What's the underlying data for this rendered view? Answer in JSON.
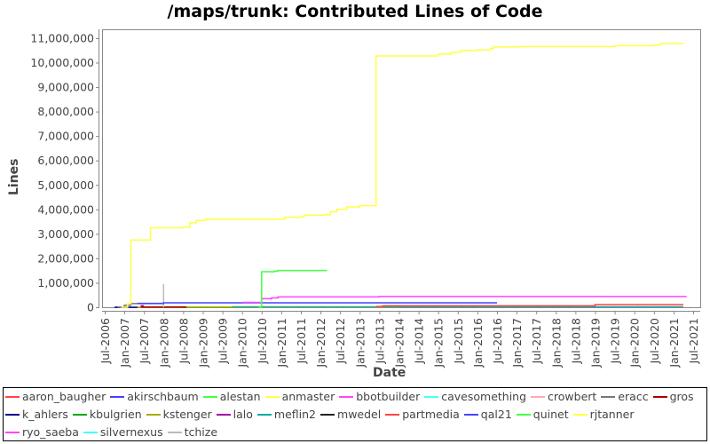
{
  "chart_data": {
    "type": "line",
    "title": "/maps/trunk: Contributed Lines of Code",
    "xlabel": "Date",
    "ylabel": "Lines",
    "ylim": [
      0,
      11500000
    ],
    "y_ticks": [
      "0",
      "1,000,000",
      "2,000,000",
      "3,000,000",
      "4,000,000",
      "5,000,000",
      "6,000,000",
      "7,000,000",
      "8,000,000",
      "9,000,000",
      "10,000,000",
      "11,000,000"
    ],
    "x_ticks": [
      "Jul-2006",
      "Jan-2007",
      "Jul-2007",
      "Jan-2008",
      "Jul-2008",
      "Jan-2009",
      "Jul-2009",
      "Jan-2010",
      "Jul-2010",
      "Jan-2011",
      "Jul-2011",
      "Jan-2012",
      "Jul-2012",
      "Jan-2013",
      "Jul-2013",
      "Jan-2014",
      "Jul-2014",
      "Jan-2015",
      "Jul-2015",
      "Jan-2016",
      "Jul-2016",
      "Jan-2017",
      "Jul-2017",
      "Jan-2018",
      "Jul-2018",
      "Jan-2019",
      "Jul-2019",
      "Jan-2020",
      "Jul-2020",
      "Jan-2021",
      "Jul-2021"
    ],
    "grid": false,
    "legend_position": "bottom",
    "series": [
      {
        "name": "rjtanner",
        "color": "#ffff44",
        "points": [
          [
            "2006-12",
            0
          ],
          [
            "2007-02",
            150000
          ],
          [
            "2007-03",
            900000
          ],
          [
            "2007-03",
            2750000
          ],
          [
            "2007-09",
            2750000
          ],
          [
            "2007-09",
            3250000
          ],
          [
            "2008-07",
            3270000
          ],
          [
            "2008-09",
            3450000
          ],
          [
            "2008-11",
            3550000
          ],
          [
            "2009-02",
            3600000
          ],
          [
            "2011-01",
            3600000
          ],
          [
            "2011-02",
            3680000
          ],
          [
            "2011-07",
            3700000
          ],
          [
            "2011-08",
            3760000
          ],
          [
            "2012-02",
            3780000
          ],
          [
            "2012-04",
            3900000
          ],
          [
            "2012-06",
            4000000
          ],
          [
            "2012-09",
            4100000
          ],
          [
            "2013-01",
            4150000
          ],
          [
            "2013-06",
            4200000
          ],
          [
            "2013-06",
            10270000
          ],
          [
            "2014-11",
            10270000
          ],
          [
            "2015-01",
            10350000
          ],
          [
            "2015-05",
            10420000
          ],
          [
            "2015-08",
            10500000
          ],
          [
            "2016-01",
            10520000
          ],
          [
            "2016-05",
            10580000
          ],
          [
            "2016-06",
            10640000
          ],
          [
            "2017-02",
            10660000
          ],
          [
            "2019-07",
            10690000
          ],
          [
            "2020-07",
            10720000
          ],
          [
            "2020-09",
            10780000
          ],
          [
            "2021-04",
            10790000
          ]
        ]
      },
      {
        "name": "quinet",
        "color": "#44ff44",
        "points": [
          [
            "2010-06",
            0
          ],
          [
            "2010-07",
            1450000
          ],
          [
            "2010-11",
            1480000
          ],
          [
            "2010-12",
            1500000
          ],
          [
            "2012-03",
            1500000
          ]
        ]
      },
      {
        "name": "bbotbuilder",
        "color": "#ff44ff",
        "points": [
          [
            "2010-01",
            200000
          ],
          [
            "2010-06",
            200000
          ],
          [
            "2010-07",
            350000
          ],
          [
            "2010-10",
            380000
          ],
          [
            "2010-12",
            420000
          ],
          [
            "2013-06",
            420000
          ],
          [
            "2013-07",
            440000
          ],
          [
            "2021-05",
            440000
          ]
        ]
      },
      {
        "name": "akirschbaum",
        "color": "#4444ff",
        "points": [
          [
            "2007-05",
            160000
          ],
          [
            "2008-01",
            180000
          ],
          [
            "2016-07",
            180000
          ]
        ]
      },
      {
        "name": "aaron_baugher",
        "color": "#ff4444",
        "points": [
          [
            "2013-06",
            30000
          ],
          [
            "2013-08",
            60000
          ],
          [
            "2018-12",
            60000
          ],
          [
            "2019-01",
            110000
          ],
          [
            "2021-04",
            110000
          ]
        ]
      },
      {
        "name": "meflin2",
        "color": "#22aaaa",
        "points": [
          [
            "2009-10",
            20000
          ],
          [
            "2013-06",
            20000
          ],
          [
            "2021-04",
            20000
          ]
        ]
      },
      {
        "name": "eracc",
        "color": "#777777",
        "points": [
          [
            "2006-11",
            0
          ],
          [
            "2007-01",
            80000
          ],
          [
            "2007-03",
            150000
          ],
          [
            "2008-01",
            150000
          ]
        ]
      },
      {
        "name": "tchize",
        "color": "#bbbbbb",
        "points": [
          [
            "2008-01",
            0
          ],
          [
            "2008-01",
            950000
          ],
          [
            "2008-01",
            0
          ]
        ]
      },
      {
        "name": "gros",
        "color": "#aa0000",
        "points": [
          [
            "2007-06",
            10000
          ],
          [
            "2008-08",
            10000
          ]
        ]
      },
      {
        "name": "kstenger",
        "color": "#aaaa00",
        "points": [
          [
            "2007-05",
            0
          ],
          [
            "2013-04",
            0
          ],
          [
            "2014-01",
            20000
          ]
        ]
      },
      {
        "name": "mwedel",
        "color": "#222222",
        "points": [
          [
            "2010-09",
            10000
          ],
          [
            "2012-03",
            10000
          ]
        ]
      },
      {
        "name": "k_ahlers",
        "color": "#000088",
        "points": [
          [
            "2006-10",
            0
          ],
          [
            "2007-05",
            0
          ]
        ]
      },
      {
        "name": "lalo",
        "color": "#aa00aa",
        "points": [
          [
            "2007-06",
            60000
          ],
          [
            "2007-07",
            60000
          ]
        ]
      },
      {
        "name": "kbulgrien",
        "color": "#00aa00",
        "points": [
          [
            "2008-06",
            0
          ],
          [
            "2010-06",
            0
          ]
        ]
      },
      {
        "name": "partmedia",
        "color": "#ee3333",
        "points": []
      },
      {
        "name": "qal21",
        "color": "#3333dd",
        "points": []
      },
      {
        "name": "alestan",
        "color": "#44ee44",
        "points": []
      },
      {
        "name": "anmaster",
        "color": "#ffff66",
        "points": []
      },
      {
        "name": "cavesomething",
        "color": "#44eeee",
        "points": []
      },
      {
        "name": "crowbert",
        "color": "#ffaaaa",
        "points": []
      },
      {
        "name": "ryo_saeba",
        "color": "#ff44ff",
        "points": []
      },
      {
        "name": "silvernexus",
        "color": "#44ffff",
        "points": []
      }
    ]
  },
  "legend": {
    "rows": [
      [
        {
          "name": "aaron_baugher",
          "color": "#ff4444"
        },
        {
          "name": "akirschbaum",
          "color": "#4444ff"
        },
        {
          "name": "alestan",
          "color": "#44ff44"
        },
        {
          "name": "anmaster",
          "color": "#ffff44"
        },
        {
          "name": "bbotbuilder",
          "color": "#ff44ff"
        },
        {
          "name": "cavesomething",
          "color": "#44ffff"
        },
        {
          "name": "crowbert",
          "color": "#ffaaaa"
        },
        {
          "name": "eracc",
          "color": "#777777"
        },
        {
          "name": "gros",
          "color": "#aa0000"
        }
      ],
      [
        {
          "name": "k_ahlers",
          "color": "#000088"
        },
        {
          "name": "kbulgrien",
          "color": "#00aa00"
        },
        {
          "name": "kstenger",
          "color": "#aaaa00"
        },
        {
          "name": "lalo",
          "color": "#aa00aa"
        },
        {
          "name": "meflin2",
          "color": "#00aaaa"
        },
        {
          "name": "mwedel",
          "color": "#222222"
        },
        {
          "name": "partmedia",
          "color": "#ff4444"
        },
        {
          "name": "qal21",
          "color": "#4444ff"
        },
        {
          "name": "quinet",
          "color": "#44ff44"
        },
        {
          "name": "rjtanner",
          "color": "#ffff44"
        }
      ],
      [
        {
          "name": "ryo_saeba",
          "color": "#ff44ff"
        },
        {
          "name": "silvernexus",
          "color": "#44ffff"
        },
        {
          "name": "tchize",
          "color": "#bbbbbb"
        }
      ]
    ]
  }
}
